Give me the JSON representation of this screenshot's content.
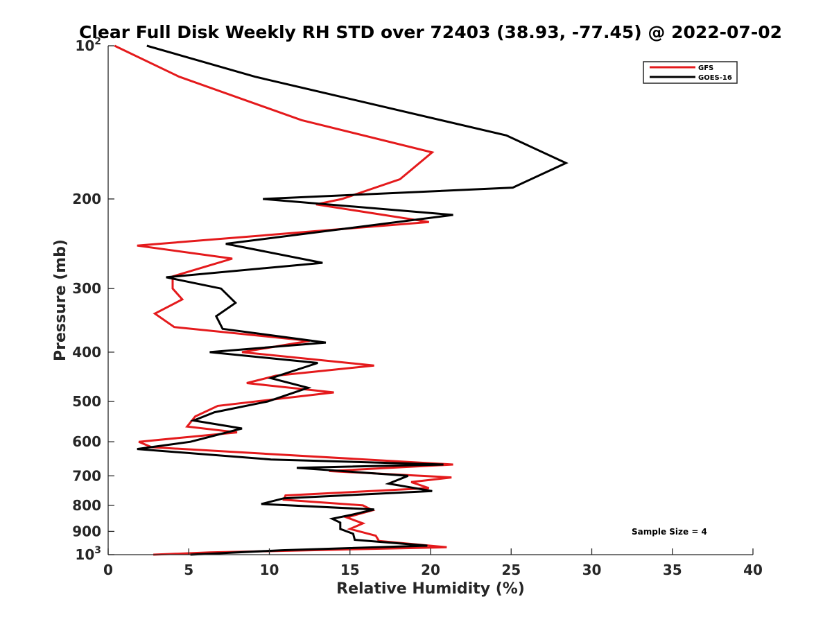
{
  "chart_data": {
    "type": "line",
    "title": "Clear Full Disk Weekly RH STD over 72403 (38.93, -77.45) @ 2022-07-02",
    "xlabel": "Relative Humidity (%)",
    "ylabel": "Pressure (mb)",
    "xlim": [
      0,
      40
    ],
    "ylim": [
      100,
      1000
    ],
    "yscale": "log",
    "y_reversed": true,
    "x_ticks": [
      "0",
      "5",
      "10",
      "15",
      "20",
      "25",
      "30",
      "35",
      "40"
    ],
    "y_ticks": [
      {
        "value": 100,
        "base": "10",
        "exp": "2"
      },
      {
        "value": 200,
        "label": "200"
      },
      {
        "value": 300,
        "label": "300"
      },
      {
        "value": 400,
        "label": "400"
      },
      {
        "value": 500,
        "label": "500"
      },
      {
        "value": 600,
        "label": "600"
      },
      {
        "value": 700,
        "label": "700"
      },
      {
        "value": 800,
        "label": "800"
      },
      {
        "value": 900,
        "label": "900"
      },
      {
        "value": 1000,
        "base": "10",
        "exp": "3"
      }
    ],
    "legend_position": "top-right",
    "grid": false,
    "annotation": "Sample Size = 4",
    "series": [
      {
        "name": "GFS",
        "color": "#e41a1c",
        "x": [
          0.4,
          4.4,
          12.0,
          20.1,
          18.1,
          14.5,
          12.9,
          19.9,
          1.8,
          7.7,
          4.0,
          4.0,
          4.6,
          2.9,
          4.1,
          12.5,
          8.3,
          16.5,
          10.4,
          8.6,
          14.0,
          6.8,
          5.4,
          4.9,
          8.0,
          1.9,
          2.7,
          21.4,
          13.7,
          21.3,
          18.8,
          19.9,
          11.0,
          10.9,
          15.8,
          16.4,
          14.8,
          15.8,
          15.0,
          16.6,
          16.8,
          21.0,
          6.3,
          2.8
        ],
        "y": [
          100,
          115,
          140,
          162,
          183,
          200,
          205,
          222,
          247,
          262,
          284,
          300,
          315,
          336,
          357,
          380,
          400,
          425,
          445,
          460,
          480,
          510,
          535,
          560,
          575,
          600,
          615,
          665,
          685,
          705,
          720,
          740,
          765,
          780,
          800,
          818,
          845,
          868,
          890,
          918,
          940,
          967,
          990,
          1000
        ]
      },
      {
        "name": "GOES-16",
        "color": "#000000",
        "x": [
          2.4,
          9.1,
          24.7,
          28.4,
          25.1,
          9.6,
          21.4,
          7.3,
          13.3,
          3.6,
          7.0,
          7.9,
          6.7,
          7.1,
          13.5,
          6.3,
          13.0,
          10.1,
          12.4,
          9.9,
          6.6,
          5.3,
          8.3,
          5.1,
          1.8,
          10.1,
          20.8,
          11.7,
          18.6,
          17.4,
          20.1,
          10.9,
          9.5,
          16.5,
          15.1,
          13.9,
          14.4,
          14.4,
          15.2,
          15.3,
          19.8,
          10.8,
          5.1
        ],
        "y": [
          100,
          115,
          150,
          170,
          190,
          200,
          215,
          245,
          267,
          285,
          300,
          320,
          340,
          360,
          383,
          400,
          420,
          450,
          470,
          500,
          525,
          545,
          565,
          600,
          620,
          650,
          665,
          675,
          700,
          725,
          750,
          775,
          795,
          815,
          835,
          850,
          865,
          890,
          910,
          935,
          960,
          980,
          1000
        ]
      }
    ]
  }
}
